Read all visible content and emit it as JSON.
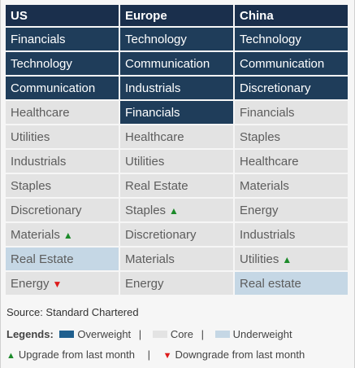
{
  "columns": [
    "US",
    "Europe",
    "China"
  ],
  "rows": [
    [
      {
        "text": "Financials",
        "tier": "ow",
        "arrow": ""
      },
      {
        "text": "Technology",
        "tier": "ow",
        "arrow": ""
      },
      {
        "text": "Technology",
        "tier": "ow",
        "arrow": ""
      }
    ],
    [
      {
        "text": "Technology",
        "tier": "ow",
        "arrow": ""
      },
      {
        "text": "Communication",
        "tier": "ow",
        "arrow": ""
      },
      {
        "text": "Communication",
        "tier": "ow",
        "arrow": ""
      }
    ],
    [
      {
        "text": "Communication",
        "tier": "ow",
        "arrow": ""
      },
      {
        "text": "Industrials",
        "tier": "ow",
        "arrow": ""
      },
      {
        "text": "Discretionary",
        "tier": "ow",
        "arrow": ""
      }
    ],
    [
      {
        "text": "Healthcare",
        "tier": "core",
        "arrow": ""
      },
      {
        "text": "Financials",
        "tier": "ow",
        "arrow": ""
      },
      {
        "text": "Financials",
        "tier": "core",
        "arrow": ""
      }
    ],
    [
      {
        "text": "Utilities",
        "tier": "core",
        "arrow": ""
      },
      {
        "text": "Healthcare",
        "tier": "core",
        "arrow": ""
      },
      {
        "text": "Staples",
        "tier": "core",
        "arrow": ""
      }
    ],
    [
      {
        "text": "Industrials",
        "tier": "core",
        "arrow": ""
      },
      {
        "text": "Utilities",
        "tier": "core",
        "arrow": ""
      },
      {
        "text": "Healthcare",
        "tier": "core",
        "arrow": ""
      }
    ],
    [
      {
        "text": "Staples",
        "tier": "core",
        "arrow": ""
      },
      {
        "text": "Real Estate",
        "tier": "core",
        "arrow": ""
      },
      {
        "text": "Materials",
        "tier": "core",
        "arrow": ""
      }
    ],
    [
      {
        "text": "Discretionary",
        "tier": "core",
        "arrow": ""
      },
      {
        "text": "Staples",
        "tier": "core",
        "arrow": "up"
      },
      {
        "text": "Energy",
        "tier": "core",
        "arrow": ""
      }
    ],
    [
      {
        "text": "Materials",
        "tier": "core",
        "arrow": "up"
      },
      {
        "text": "Discretionary",
        "tier": "core",
        "arrow": ""
      },
      {
        "text": "Industrials",
        "tier": "core",
        "arrow": ""
      }
    ],
    [
      {
        "text": "Real Estate",
        "tier": "uw",
        "arrow": ""
      },
      {
        "text": "Materials",
        "tier": "core",
        "arrow": ""
      },
      {
        "text": "Utilities",
        "tier": "core",
        "arrow": "up"
      }
    ],
    [
      {
        "text": "Energy",
        "tier": "core",
        "arrow": "down"
      },
      {
        "text": "Energy",
        "tier": "core",
        "arrow": ""
      },
      {
        "text": "Real estate",
        "tier": "uw",
        "arrow": ""
      }
    ]
  ],
  "source": "Source: Standard Chartered",
  "legend": {
    "title": "Legends:",
    "overweight": "Overweight",
    "core": "Core",
    "underweight": "Underweight",
    "upgrade": "Upgrade from last month",
    "downgrade": "Downgrade from last month",
    "separator": "|"
  },
  "icons": {
    "up": "triangle-up",
    "down": "triangle-down"
  },
  "colors": {
    "header": "#1a2f4c",
    "overweight": "#1f3d5a",
    "core": "#e3e3e3",
    "underweight": "#c5d7e5",
    "upgrade": "#1c8a2a",
    "downgrade": "#dd1a1a"
  }
}
